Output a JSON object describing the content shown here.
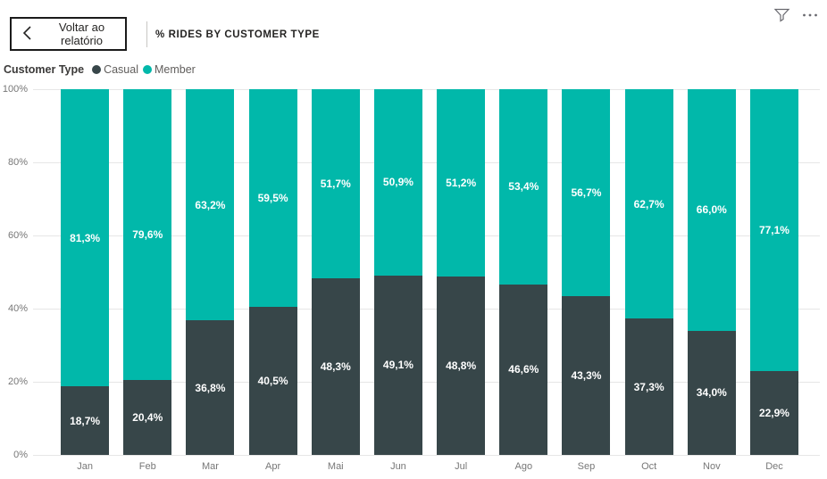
{
  "header": {
    "back_button_label": "Voltar ao relatório",
    "title": "% RIDES BY CUSTOMER TYPE",
    "icons": {
      "back_chevron": "chevron-left-icon",
      "filter": "filter-icon",
      "more_options": "ellipsis-icon"
    }
  },
  "legend": {
    "title": "Customer Type",
    "items": [
      {
        "label": "Casual",
        "color": "#374649"
      },
      {
        "label": "Member",
        "color": "#01B8AA"
      }
    ]
  },
  "chart_data": {
    "type": "bar",
    "stacked": true,
    "normalized": "percent",
    "title": "% RIDES BY CUSTOMER TYPE",
    "categories": [
      "Jan",
      "Feb",
      "Mar",
      "Apr",
      "Mai",
      "Jun",
      "Jul",
      "Ago",
      "Sep",
      "Oct",
      "Nov",
      "Dec"
    ],
    "series": [
      {
        "name": "Casual",
        "color": "#374649",
        "values": [
          18.7,
          20.4,
          36.8,
          40.5,
          48.3,
          49.1,
          48.8,
          46.6,
          43.3,
          37.3,
          34.0,
          22.9
        ],
        "labels": [
          "18,7%",
          "20,4%",
          "36,8%",
          "40,5%",
          "48,3%",
          "49,1%",
          "48,8%",
          "46,6%",
          "43,3%",
          "37,3%",
          "34,0%",
          "22,9%"
        ]
      },
      {
        "name": "Member",
        "color": "#01B8AA",
        "values": [
          81.3,
          79.6,
          63.2,
          59.5,
          51.7,
          50.9,
          51.2,
          53.4,
          56.7,
          62.7,
          66.0,
          77.1
        ],
        "labels": [
          "81,3%",
          "79,6%",
          "63,2%",
          "59,5%",
          "51,7%",
          "50,9%",
          "51,2%",
          "53,4%",
          "56,7%",
          "62,7%",
          "66,0%",
          "77,1%"
        ]
      }
    ],
    "ylim": [
      0,
      100
    ],
    "y_ticks": [
      {
        "value": 0,
        "label": "0%"
      },
      {
        "value": 20,
        "label": "20%"
      },
      {
        "value": 40,
        "label": "40%"
      },
      {
        "value": 60,
        "label": "60%"
      },
      {
        "value": 80,
        "label": "80%"
      },
      {
        "value": 100,
        "label": "100%"
      }
    ],
    "grid": true,
    "legend_position": "top",
    "data_label_color": "#FFFFFF"
  },
  "colors": {
    "gridline": "#E6E6E6",
    "axis_text": "#777777",
    "legend_text": "#605E5C",
    "title_text": "#252423",
    "header_icon": "#69696F"
  }
}
